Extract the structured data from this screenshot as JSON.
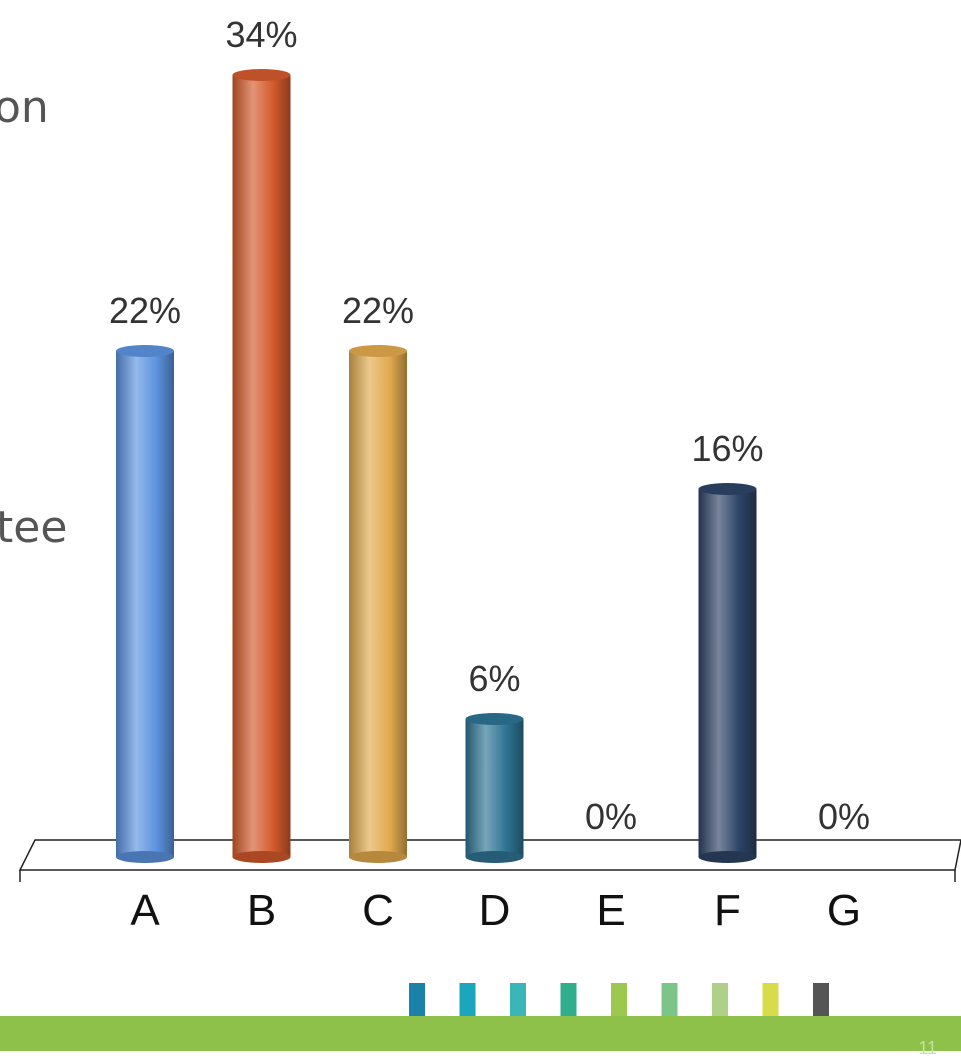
{
  "slide": {
    "text_fragments": [
      "on",
      "tee"
    ],
    "page_number": "11"
  },
  "chart_data": {
    "type": "bar",
    "categories": [
      "A",
      "B",
      "C",
      "D",
      "E",
      "F",
      "G"
    ],
    "values": [
      22,
      34,
      22,
      6,
      0,
      16,
      0
    ],
    "value_labels": [
      "22%",
      "34%",
      "22%",
      "6%",
      "0%",
      "16%",
      "0%"
    ],
    "ylim": [
      0,
      34
    ],
    "grid": false,
    "legend": "none",
    "colors": [
      "#5b93e0",
      "#d45a2c",
      "#e2aa4e",
      "#2e7493",
      "#ffffff",
      "#2d4466",
      "#ffffff"
    ]
  },
  "decoration": {
    "stripe_colors": [
      "#1a82a8",
      "#1aa6bd",
      "#3ab5b8",
      "#2fae8e",
      "#9cc84f",
      "#7cc487",
      "#aed089",
      "#d9dc4a",
      "#555555"
    ]
  }
}
